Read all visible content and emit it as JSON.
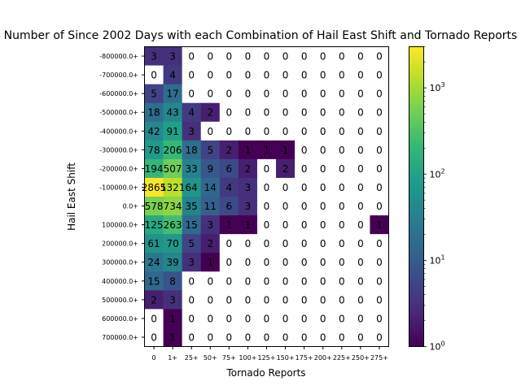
{
  "chart_data": {
    "type": "heatmap",
    "title": "Number of Since 2002 Days with each Combination of Hail East Shift and Tornado Reports",
    "xlabel": "Tornado Reports",
    "ylabel": "Hail East Shift",
    "x_categories": [
      "0",
      "1+",
      "25+",
      "50+",
      "75+",
      "100+",
      "125+",
      "150+",
      "175+",
      "200+",
      "225+",
      "250+",
      "275+"
    ],
    "y_categories": [
      "-800000.0+",
      "-700000.0+",
      "-600000.0+",
      "-500000.0+",
      "-400000.0+",
      "-300000.0+",
      "-200000.0+",
      "-100000.0+",
      "0.0+",
      "100000.0+",
      "200000.0+",
      "300000.0+",
      "400000.0+",
      "500000.0+",
      "600000.0+",
      "700000.0+"
    ],
    "values": [
      [
        3,
        3,
        0,
        0,
        0,
        0,
        0,
        0,
        0,
        0,
        0,
        0,
        0
      ],
      [
        0,
        4,
        0,
        0,
        0,
        0,
        0,
        0,
        0,
        0,
        0,
        0,
        0
      ],
      [
        5,
        17,
        0,
        0,
        0,
        0,
        0,
        0,
        0,
        0,
        0,
        0,
        0
      ],
      [
        18,
        43,
        4,
        2,
        0,
        0,
        0,
        0,
        0,
        0,
        0,
        0,
        0
      ],
      [
        42,
        91,
        3,
        0,
        0,
        0,
        0,
        0,
        0,
        0,
        0,
        0,
        0
      ],
      [
        78,
        206,
        18,
        5,
        2,
        1,
        1,
        1,
        0,
        0,
        0,
        0,
        0
      ],
      [
        194,
        507,
        33,
        9,
        6,
        2,
        0,
        2,
        0,
        0,
        0,
        0,
        0
      ],
      [
        2865,
        1321,
        64,
        14,
        4,
        3,
        0,
        0,
        0,
        0,
        0,
        0,
        0
      ],
      [
        578,
        734,
        35,
        11,
        6,
        3,
        0,
        0,
        0,
        0,
        0,
        0,
        0
      ],
      [
        125,
        263,
        15,
        3,
        1,
        1,
        0,
        0,
        0,
        0,
        0,
        0,
        1
      ],
      [
        61,
        70,
        5,
        2,
        0,
        0,
        0,
        0,
        0,
        0,
        0,
        0,
        0
      ],
      [
        24,
        39,
        3,
        1,
        0,
        0,
        0,
        0,
        0,
        0,
        0,
        0,
        0
      ],
      [
        15,
        8,
        0,
        0,
        0,
        0,
        0,
        0,
        0,
        0,
        0,
        0,
        0
      ],
      [
        2,
        3,
        0,
        0,
        0,
        0,
        0,
        0,
        0,
        0,
        0,
        0,
        0
      ],
      [
        0,
        1,
        0,
        0,
        0,
        0,
        0,
        0,
        0,
        0,
        0,
        0,
        0
      ],
      [
        0,
        1,
        0,
        0,
        0,
        0,
        0,
        0,
        0,
        0,
        0,
        0,
        0
      ]
    ],
    "colorbar": {
      "scale": "log",
      "range": [
        1,
        3000
      ],
      "colormap": "viridis",
      "ticks": [
        {
          "base": "10",
          "exp": "1",
          "value": 10
        },
        {
          "base": "10",
          "exp": "2",
          "value": 100
        },
        {
          "base": "10",
          "exp": "3",
          "value": 1000
        }
      ],
      "minor_ticks": [
        2,
        3,
        4,
        5,
        6,
        7,
        8,
        9,
        20,
        30,
        40,
        50,
        60,
        70,
        80,
        90,
        200,
        300,
        400,
        500,
        600,
        700,
        800,
        900,
        2000,
        3000
      ],
      "min_label": "10",
      "min_exp": "0"
    },
    "zero_color": "#ffffff",
    "grid": false,
    "legend": "colorbar-right"
  }
}
